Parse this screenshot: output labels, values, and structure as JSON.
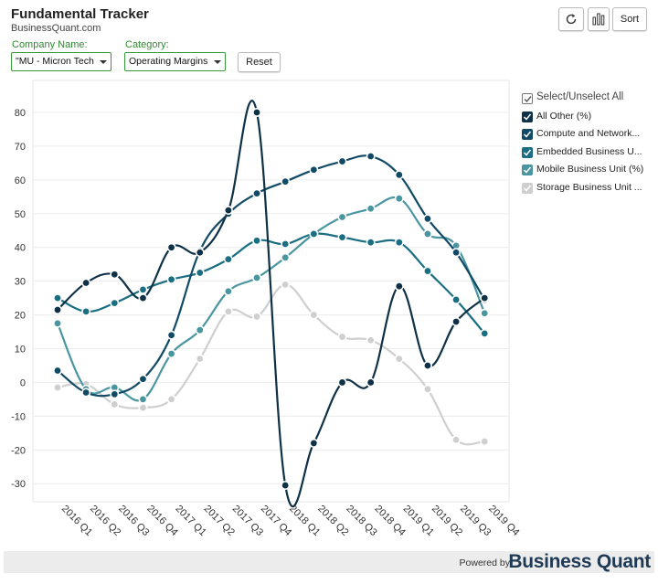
{
  "header": {
    "title": "Fundamental Tracker",
    "subtitle": "BusinessQuant.com"
  },
  "controls": {
    "company_label": "Company Name:",
    "company_value": "\"MU - Micron Tech",
    "category_label": "Category:",
    "category_value": "Operating Margins",
    "reset_label": "Reset",
    "sort_label": "Sort",
    "refresh_icon": "refresh-icon",
    "bar_chart_icon": "bar-chart-icon"
  },
  "legend": {
    "select_all_label": "Select/Unselect All",
    "items": [
      {
        "label": "All Other (%)",
        "color": "#0f3148"
      },
      {
        "label": "Compute and Network...",
        "color": "#114a66"
      },
      {
        "label": "Embedded Business U...",
        "color": "#1a6e82"
      },
      {
        "label": "Mobile Business Unit (%)",
        "color": "#4a96a0"
      },
      {
        "label": "Storage Business Unit ...",
        "color": "#cfcfcf"
      }
    ]
  },
  "footer": {
    "powered_by": "Powered by",
    "brand": "Business Quant"
  },
  "chart_data": {
    "type": "line",
    "categories": [
      "2016 Q1",
      "2016 Q2",
      "2016 Q3",
      "2016 Q4",
      "2017 Q1",
      "2017 Q2",
      "2017 Q3",
      "2017 Q4",
      "2018 Q1",
      "2018 Q2",
      "2018 Q3",
      "2018 Q4",
      "2019 Q1",
      "2019 Q2",
      "2019 Q3",
      "2019 Q4"
    ],
    "ylim": [
      -35,
      85
    ],
    "yticks": [
      -30,
      -20,
      -10,
      0,
      10,
      20,
      30,
      40,
      50,
      60,
      70,
      80
    ],
    "grid": true,
    "legend_position": "right",
    "series": [
      {
        "name": "All Other (%)",
        "color": "#0f3148",
        "values": [
          21.5,
          29.5,
          32,
          25,
          40,
          38.5,
          51,
          80,
          -30.5,
          -18,
          0,
          0,
          28.5,
          5,
          18,
          25
        ]
      },
      {
        "name": "Compute and Network...",
        "color": "#114a66",
        "values": [
          3.5,
          -3,
          -3.5,
          1,
          14,
          39,
          50,
          56,
          59.5,
          63,
          65.5,
          67,
          61.5,
          48.5,
          38.5,
          24.5
        ]
      },
      {
        "name": "Embedded Business U...",
        "color": "#1a6e82",
        "values": [
          25,
          21,
          23.5,
          27.5,
          30.5,
          32.5,
          36.5,
          42,
          41,
          44,
          43,
          41.5,
          41.5,
          33,
          24.5,
          14.5
        ]
      },
      {
        "name": "Mobile Business Unit (%)",
        "color": "#4a96a0",
        "values": [
          17.5,
          -2,
          -1.5,
          -5,
          8.5,
          15.5,
          27,
          31,
          37,
          44,
          49,
          51.5,
          54.5,
          44,
          40.5,
          20.5
        ]
      },
      {
        "name": "Storage Business Unit ...",
        "color": "#cfcfcf",
        "values": [
          -1.5,
          -0.5,
          -6.5,
          -7.5,
          -5,
          7,
          21,
          19.5,
          29,
          20,
          13.5,
          12.5,
          7,
          -2,
          -17,
          -17.5
        ]
      }
    ]
  }
}
